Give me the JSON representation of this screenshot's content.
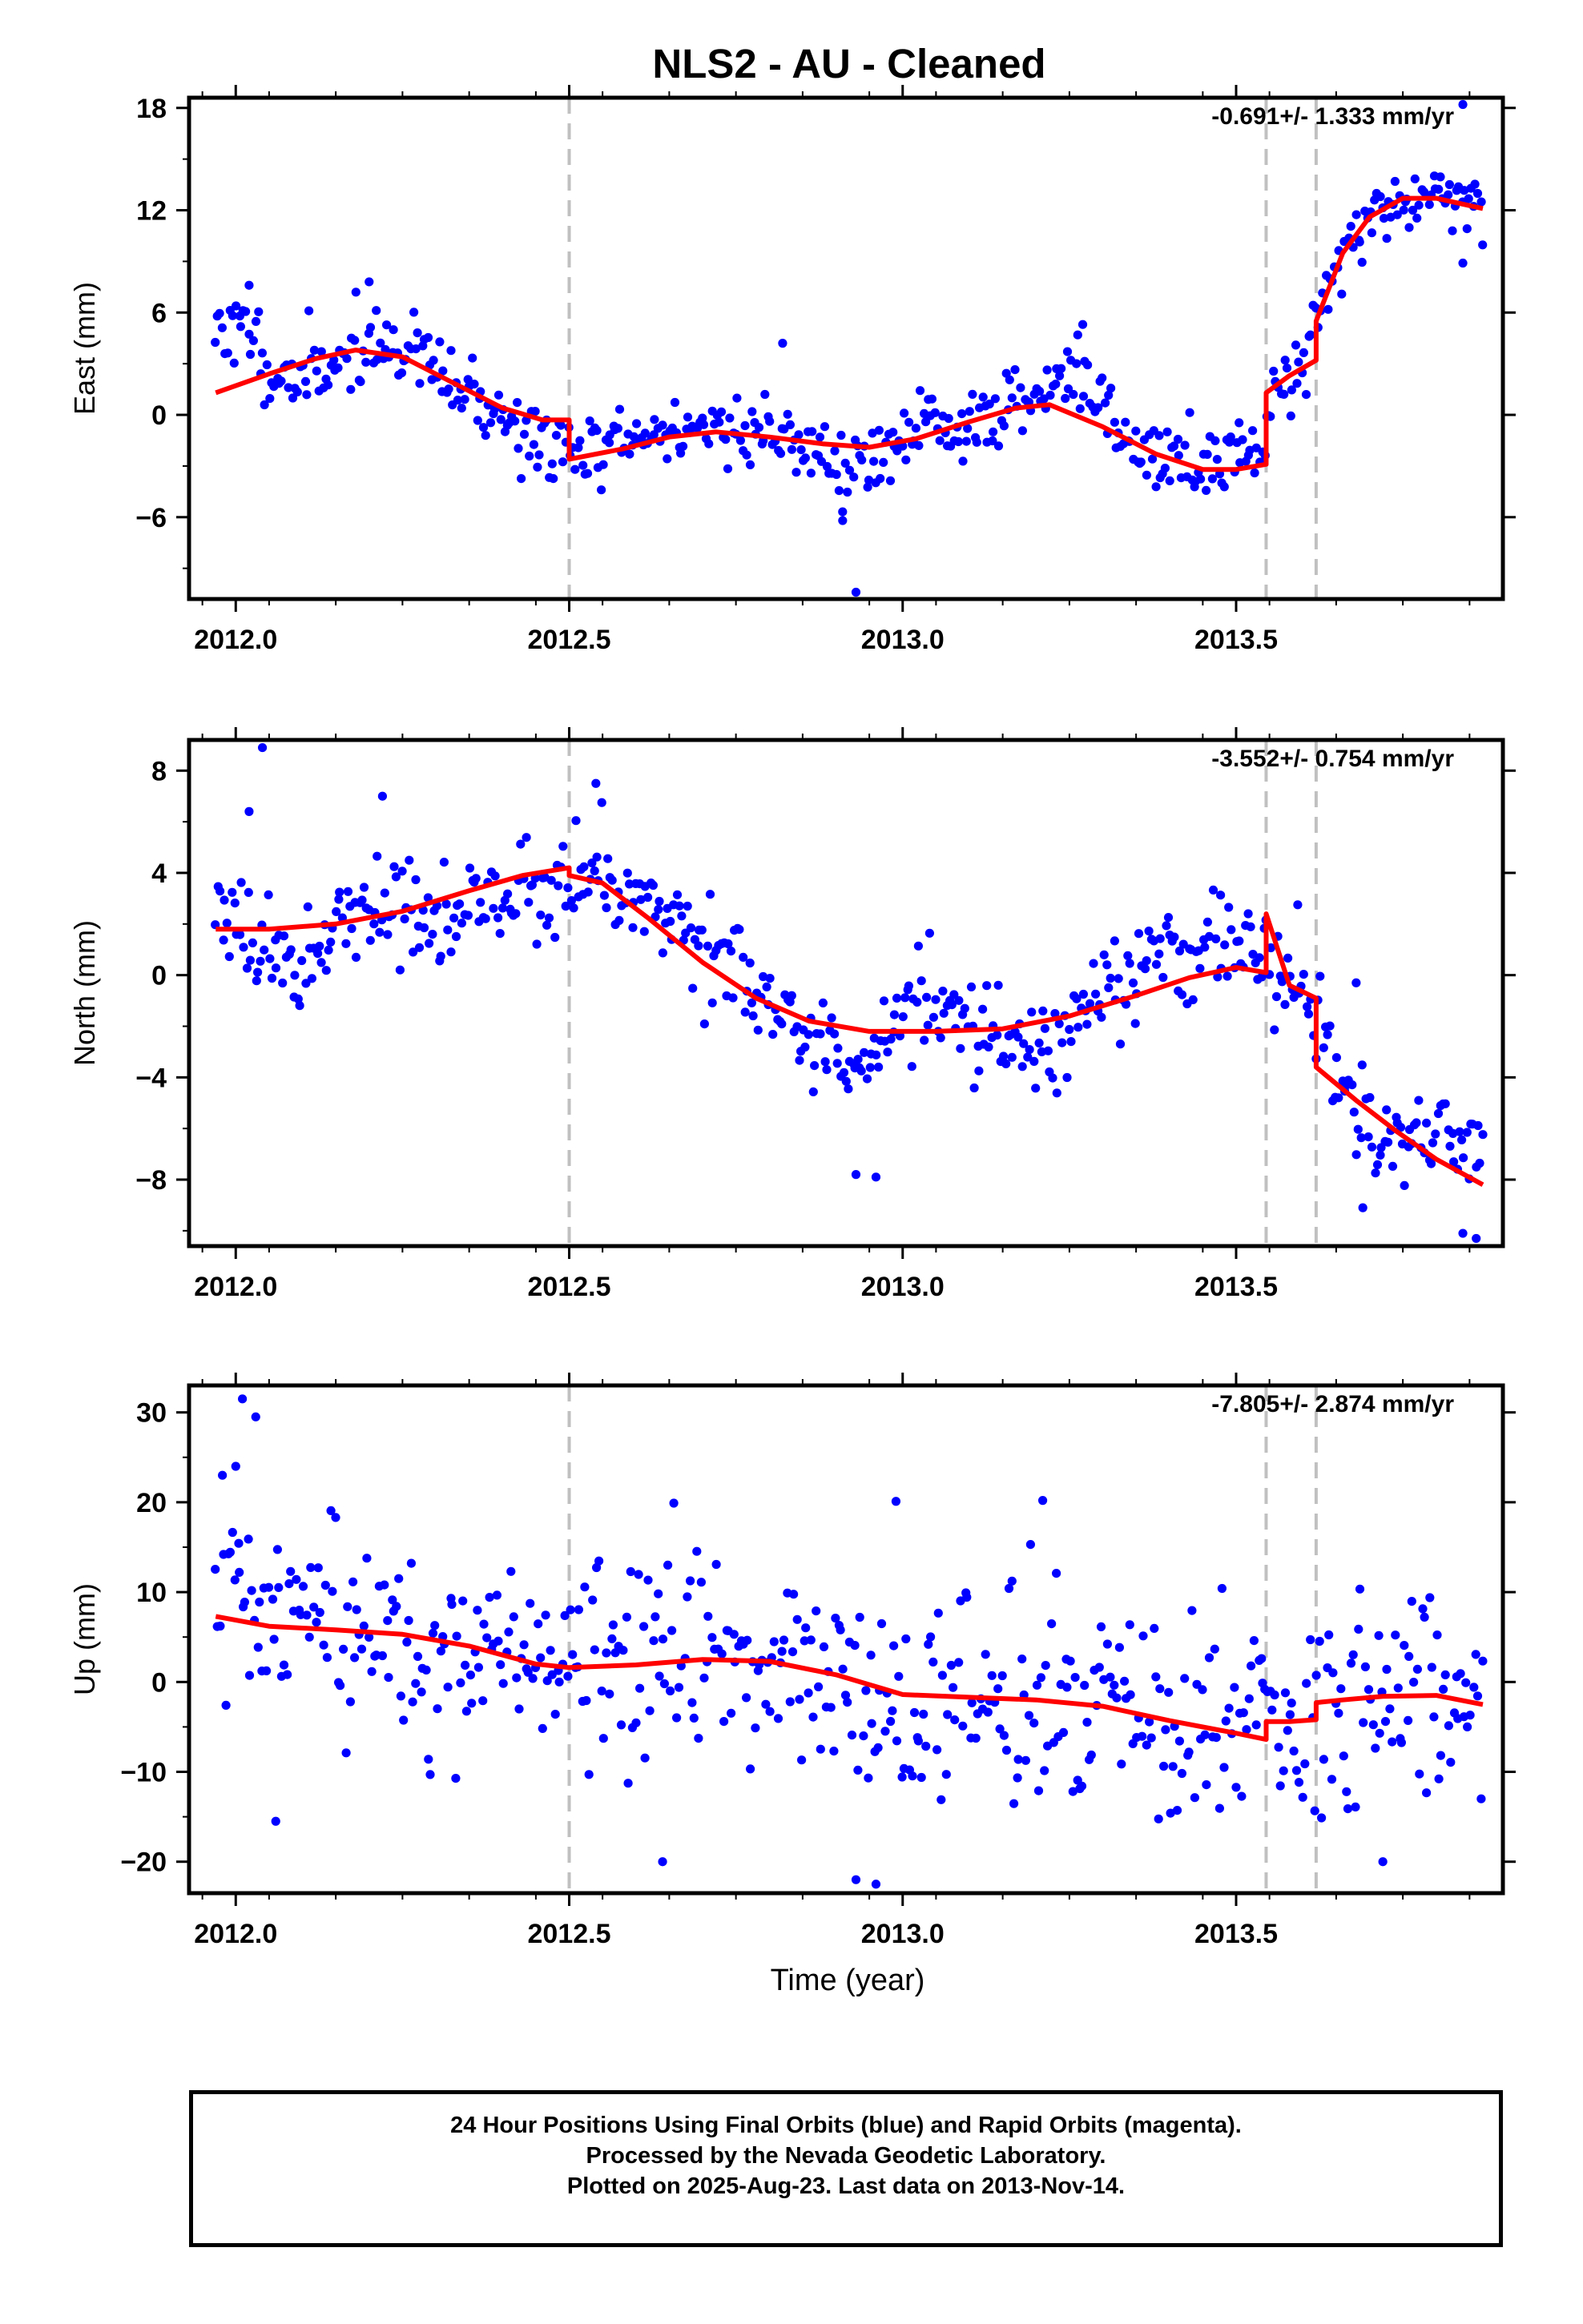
{
  "title": "NLS2  - AU - Cleaned",
  "xlabel": "Time (year)",
  "colors": {
    "points": "#0000ff",
    "model": "#ff0000",
    "steps": "#c0c0c0",
    "frame": "#000000"
  },
  "footer": {
    "line1": "24 Hour Positions Using Final Orbits (blue) and Rapid Orbits (magenta).",
    "line2": "Processed by the Nevada Geodetic Laboratory.",
    "line3": "Plotted on 2025-Aug-23. Last data on 2013-Nov-14."
  },
  "chart_data": [
    {
      "type": "scatter",
      "ylabel": "East (mm)",
      "rate_label": "-0.691+/- 1.333 mm/yr",
      "xlim": [
        2011.93,
        2013.9
      ],
      "ylim": [
        -10.8,
        18.6
      ],
      "xticks": [
        2012.0,
        2012.5,
        2013.0,
        2013.5
      ],
      "xticklabels": [
        "2012.0",
        "2012.5",
        "2013.0",
        "2013.5"
      ],
      "yticks": [
        18,
        12,
        6,
        0,
        -6
      ],
      "yticklabels": [
        "18",
        "12",
        "6",
        "0",
        "−6"
      ],
      "step_epochs": [
        2012.5,
        2013.545,
        2013.62
      ],
      "model": {
        "x": [
          2011.97,
          2012.05,
          2012.12,
          2012.18,
          2012.25,
          2012.32,
          2012.4,
          2012.46,
          2012.5,
          2012.5,
          2012.58,
          2012.65,
          2012.72,
          2012.8,
          2012.88,
          2012.95,
          2013.02,
          2013.1,
          2013.17,
          2013.22,
          2013.3,
          2013.38,
          2013.45,
          2013.5,
          2013.545,
          2013.545,
          2013.58,
          2013.62,
          2013.62,
          2013.66,
          2013.7,
          2013.75,
          2013.8,
          2013.87
        ],
        "y": [
          1.3,
          2.4,
          3.3,
          3.8,
          3.4,
          2.0,
          0.4,
          -0.3,
          -0.3,
          -2.6,
          -2.0,
          -1.3,
          -1.0,
          -1.3,
          -1.7,
          -1.9,
          -1.4,
          -0.4,
          0.4,
          0.6,
          -0.7,
          -2.3,
          -3.2,
          -3.2,
          -2.9,
          1.3,
          2.3,
          3.2,
          5.5,
          9.5,
          11.6,
          12.7,
          12.7,
          12.1
        ]
      },
      "points": {
        "knots": [
          [
            2011.97,
            5.3
          ],
          [
            2012.02,
            4.8
          ],
          [
            2012.06,
            2.3
          ],
          [
            2012.1,
            1.9
          ],
          [
            2012.14,
            3.1
          ],
          [
            2012.2,
            4.2
          ],
          [
            2012.26,
            3.9
          ],
          [
            2012.32,
            1.7
          ],
          [
            2012.38,
            0.4
          ],
          [
            2012.43,
            -1.0
          ],
          [
            2012.48,
            -2.1
          ],
          [
            2012.5,
            -2.3
          ],
          [
            2012.53,
            -2.0
          ],
          [
            2012.6,
            -1.5
          ],
          [
            2012.68,
            -0.7
          ],
          [
            2012.75,
            -0.8
          ],
          [
            2012.82,
            -1.1
          ],
          [
            2012.88,
            -2.4
          ],
          [
            2012.92,
            -3.4
          ],
          [
            2012.97,
            -2.4
          ],
          [
            2013.02,
            -0.6
          ],
          [
            2013.08,
            -1.1
          ],
          [
            2013.15,
            0.5
          ],
          [
            2013.2,
            1.3
          ],
          [
            2013.25,
            2.6
          ],
          [
            2013.28,
            1.8
          ],
          [
            2013.32,
            -1.4
          ],
          [
            2013.38,
            -2.6
          ],
          [
            2013.45,
            -3.1
          ],
          [
            2013.5,
            -2.4
          ],
          [
            2013.54,
            -1.6
          ],
          [
            2013.55,
            1.4
          ],
          [
            2013.6,
            3.0
          ],
          [
            2013.62,
            5.8
          ],
          [
            2013.66,
            9.5
          ],
          [
            2013.7,
            11.6
          ],
          [
            2013.75,
            12.6
          ],
          [
            2013.8,
            12.9
          ],
          [
            2013.87,
            12.4
          ]
        ],
        "count": 540,
        "scatter": 1.1,
        "seed": 11,
        "outliers": [
          [
            2012.02,
            7.6
          ],
          [
            2012.2,
            7.8
          ],
          [
            2012.82,
            4.2
          ],
          [
            2012.93,
            -10.4
          ],
          [
            2012.91,
            -6.2
          ],
          [
            2013.27,
            5.3
          ],
          [
            2013.84,
            18.2
          ],
          [
            2013.84,
            8.9
          ]
        ]
      }
    },
    {
      "type": "scatter",
      "ylabel": "North (mm)",
      "rate_label": "-3.552+/- 0.754 mm/yr",
      "xlim": [
        2011.93,
        2013.9
      ],
      "ylim": [
        -10.6,
        9.2
      ],
      "xticks": [
        2012.0,
        2012.5,
        2013.0,
        2013.5
      ],
      "xticklabels": [
        "2012.0",
        "2012.5",
        "2013.0",
        "2013.5"
      ],
      "yticks": [
        8,
        4,
        0,
        -4,
        -8
      ],
      "yticklabels": [
        "8",
        "4",
        "0",
        "−4",
        "−8"
      ],
      "step_epochs": [
        2012.5,
        2013.545,
        2013.62
      ],
      "model": {
        "x": [
          2011.97,
          2012.05,
          2012.15,
          2012.25,
          2012.35,
          2012.43,
          2012.5,
          2012.5,
          2012.55,
          2012.62,
          2012.7,
          2012.78,
          2012.86,
          2012.95,
          2013.05,
          2013.15,
          2013.25,
          2013.35,
          2013.43,
          2013.5,
          2013.545,
          2013.545,
          2013.58,
          2013.62,
          2013.62,
          2013.68,
          2013.74,
          2013.8,
          2013.87
        ],
        "y": [
          1.8,
          1.8,
          2.0,
          2.5,
          3.3,
          3.9,
          4.2,
          3.9,
          3.6,
          2.2,
          0.5,
          -0.9,
          -1.8,
          -2.2,
          -2.2,
          -2.1,
          -1.6,
          -0.8,
          -0.1,
          0.3,
          0.1,
          2.4,
          -0.4,
          -0.9,
          -3.6,
          -4.9,
          -6.1,
          -7.2,
          -8.2
        ]
      },
      "points": {
        "knots": [
          [
            2011.97,
            3.2
          ],
          [
            2012.02,
            2.3
          ],
          [
            2012.06,
            0.5
          ],
          [
            2012.1,
            0.0
          ],
          [
            2012.14,
            2.4
          ],
          [
            2012.2,
            2.8
          ],
          [
            2012.26,
            2.2
          ],
          [
            2012.32,
            2.0
          ],
          [
            2012.38,
            3.2
          ],
          [
            2012.45,
            3.2
          ],
          [
            2012.5,
            3.6
          ],
          [
            2012.55,
            4.3
          ],
          [
            2012.6,
            3.2
          ],
          [
            2012.65,
            2.4
          ],
          [
            2012.7,
            1.6
          ],
          [
            2012.75,
            0.6
          ],
          [
            2012.8,
            -1.7
          ],
          [
            2012.86,
            -2.9
          ],
          [
            2012.92,
            -4.2
          ],
          [
            2012.97,
            -2.6
          ],
          [
            2013.02,
            -0.8
          ],
          [
            2013.08,
            -1.6
          ],
          [
            2013.15,
            -2.1
          ],
          [
            2013.22,
            -3.0
          ],
          [
            2013.28,
            -0.5
          ],
          [
            2013.35,
            0.4
          ],
          [
            2013.42,
            0.5
          ],
          [
            2013.48,
            1.5
          ],
          [
            2013.54,
            0.8
          ],
          [
            2013.58,
            0.1
          ],
          [
            2013.62,
            -1.8
          ],
          [
            2013.66,
            -4.6
          ],
          [
            2013.72,
            -6.2
          ],
          [
            2013.8,
            -6.3
          ],
          [
            2013.87,
            -6.4
          ]
        ],
        "count": 540,
        "scatter": 0.95,
        "seed": 23,
        "outliers": [
          [
            2012.04,
            8.9
          ],
          [
            2012.02,
            6.4
          ],
          [
            2012.22,
            7.0
          ],
          [
            2012.54,
            7.5
          ],
          [
            2012.96,
            -7.9
          ],
          [
            2012.93,
            -7.8
          ],
          [
            2013.69,
            -9.1
          ],
          [
            2013.84,
            -10.1
          ],
          [
            2013.86,
            -10.3
          ],
          [
            2013.68,
            -0.3
          ]
        ]
      }
    },
    {
      "type": "scatter",
      "ylabel": "Up (mm)",
      "rate_label": "-7.805+/- 2.874 mm/yr",
      "xlim": [
        2011.93,
        2013.9
      ],
      "ylim": [
        -23.5,
        33.0
      ],
      "xticks": [
        2012.0,
        2012.5,
        2013.0,
        2013.5
      ],
      "xticklabels": [
        "2012.0",
        "2012.5",
        "2013.0",
        "2013.5"
      ],
      "yticks": [
        30,
        20,
        10,
        0,
        -10,
        -20
      ],
      "yticklabels": [
        "30",
        "20",
        "10",
        "0",
        "−10",
        "−20"
      ],
      "step_epochs": [
        2012.5,
        2013.545,
        2013.62
      ],
      "model": {
        "x": [
          2011.97,
          2012.05,
          2012.15,
          2012.25,
          2012.35,
          2012.45,
          2012.5,
          2012.6,
          2012.7,
          2012.8,
          2012.9,
          2013.0,
          2013.1,
          2013.2,
          2013.3,
          2013.4,
          2013.5,
          2013.545,
          2013.545,
          2013.58,
          2013.62,
          2013.62,
          2013.66,
          2013.72,
          2013.8,
          2013.87
        ],
        "y": [
          7.3,
          6.2,
          5.8,
          5.3,
          4.0,
          2.0,
          1.6,
          1.9,
          2.5,
          2.3,
          0.8,
          -1.4,
          -1.7,
          -2.0,
          -2.7,
          -4.3,
          -5.7,
          -6.4,
          -4.4,
          -4.4,
          -4.2,
          -2.3,
          -2.0,
          -1.6,
          -1.5,
          -2.5
        ]
      },
      "points": {
        "knots": [
          [
            2011.97,
            9.5
          ],
          [
            2012.02,
            7.5
          ],
          [
            2012.06,
            5.0
          ],
          [
            2012.15,
            5.5
          ],
          [
            2012.25,
            4.5
          ],
          [
            2012.35,
            2.5
          ],
          [
            2012.45,
            2.5
          ],
          [
            2012.55,
            1.5
          ],
          [
            2012.65,
            3.0
          ],
          [
            2012.75,
            2.5
          ],
          [
            2012.85,
            0.5
          ],
          [
            2012.95,
            -3.0
          ],
          [
            2013.05,
            -2.5
          ],
          [
            2013.15,
            -1.5
          ],
          [
            2013.25,
            -2.0
          ],
          [
            2013.35,
            -3.0
          ],
          [
            2013.45,
            -5.0
          ],
          [
            2013.55,
            -5.5
          ],
          [
            2013.62,
            -3.0
          ],
          [
            2013.7,
            -2.5
          ],
          [
            2013.8,
            -1.0
          ],
          [
            2013.87,
            -2.0
          ]
        ],
        "count": 520,
        "scatter": 5.6,
        "seed": 37,
        "outliers": [
          [
            2012.01,
            31.5
          ],
          [
            2012.03,
            29.5
          ],
          [
            2011.98,
            23.0
          ],
          [
            2012.0,
            24.0
          ],
          [
            2013.21,
            20.2
          ],
          [
            2012.99,
            20.1
          ],
          [
            2012.93,
            -22.0
          ],
          [
            2012.96,
            -22.5
          ],
          [
            2012.64,
            -20.0
          ],
          [
            2013.72,
            -20.0
          ],
          [
            2012.06,
            -15.5
          ]
        ]
      }
    }
  ]
}
